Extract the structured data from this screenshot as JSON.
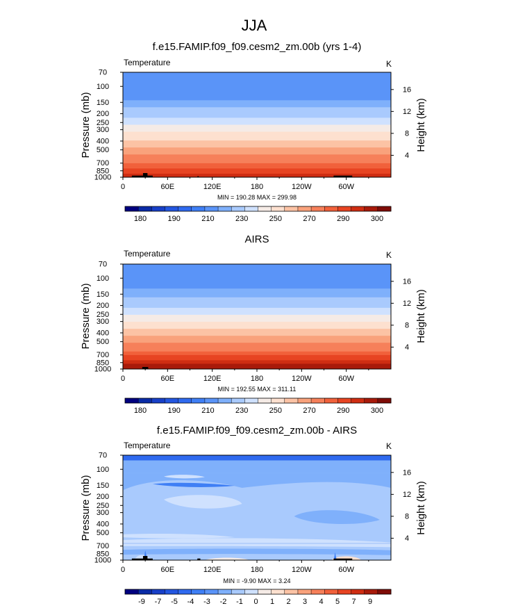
{
  "figure": {
    "title": "JJA",
    "variable": "Temperature",
    "units": "K"
  },
  "chart_data": [
    {
      "type": "contour",
      "title": "f.e15.FAMIP.f09_f09.cesm2_zm.00b (yrs 1-4)",
      "left_label": "Temperature",
      "right_label": "K",
      "ylabel": "Pressure (mb)",
      "ylabel_right": "Height (km)",
      "x_ticks": [
        "0",
        "60E",
        "120E",
        "180",
        "120W",
        "60W"
      ],
      "x_tick_values": [
        0,
        60,
        120,
        180,
        240,
        300
      ],
      "xlim": [
        0,
        360
      ],
      "y_ticks": [
        "70",
        "100",
        "150",
        "200",
        "250",
        "300",
        "400",
        "500",
        "700",
        "850",
        "1000"
      ],
      "y_tick_values": [
        70,
        100,
        150,
        200,
        250,
        300,
        400,
        500,
        700,
        850,
        1000
      ],
      "ylim": [
        70,
        1000
      ],
      "height_ticks": [
        "4",
        "8",
        "12",
        "16"
      ],
      "height_tick_values": [
        4,
        8,
        12,
        16
      ],
      "stats": "MIN = 190.28  MAX = 299.98",
      "min": 190.28,
      "max": 299.98,
      "profile_pressure": [
        70,
        100,
        150,
        200,
        250,
        300,
        400,
        500,
        700,
        850,
        1000
      ],
      "profile_temperature": [
        200,
        200,
        206,
        216,
        226,
        236,
        252,
        264,
        280,
        288,
        294
      ],
      "colorbar": {
        "labels": [
          "180",
          "190",
          "210",
          "230",
          "250",
          "270",
          "290",
          "300"
        ],
        "colors": [
          "#00007f",
          "#0a2ba6",
          "#1840c8",
          "#2356e0",
          "#2f6aef",
          "#3f7ff5",
          "#5a94f8",
          "#7fb0fb",
          "#a9cafd",
          "#cfe1fe",
          "#f5ebe6",
          "#fde0cf",
          "#fcc3a5",
          "#f9a27c",
          "#f6805a",
          "#f1613b",
          "#e74422",
          "#cf2d12",
          "#a81a0a",
          "#7f0c07"
        ]
      }
    },
    {
      "type": "contour",
      "title": "AIRS",
      "left_label": "Temperature",
      "right_label": "K",
      "ylabel": "Pressure (mb)",
      "ylabel_right": "Height (km)",
      "x_ticks": [
        "0",
        "60E",
        "120E",
        "180",
        "120W",
        "60W"
      ],
      "x_tick_values": [
        0,
        60,
        120,
        180,
        240,
        300
      ],
      "xlim": [
        0,
        360
      ],
      "y_ticks": [
        "70",
        "100",
        "150",
        "200",
        "250",
        "300",
        "400",
        "500",
        "700",
        "850",
        "1000"
      ],
      "y_tick_values": [
        70,
        100,
        150,
        200,
        250,
        300,
        400,
        500,
        700,
        850,
        1000
      ],
      "ylim": [
        70,
        1000
      ],
      "height_ticks": [
        "4",
        "8",
        "12",
        "16"
      ],
      "height_tick_values": [
        4,
        8,
        12,
        16
      ],
      "stats": "MIN = 192.55  MAX = 311.11",
      "min": 192.55,
      "max": 311.11,
      "profile_pressure": [
        70,
        100,
        150,
        200,
        250,
        300,
        400,
        500,
        700,
        850,
        1000
      ],
      "profile_temperature": [
        201,
        201,
        207,
        217,
        228,
        240,
        256,
        268,
        284,
        293,
        300
      ],
      "colorbar": {
        "labels": [
          "180",
          "190",
          "210",
          "230",
          "250",
          "270",
          "290",
          "300"
        ],
        "colors": [
          "#00007f",
          "#0a2ba6",
          "#1840c8",
          "#2356e0",
          "#2f6aef",
          "#3f7ff5",
          "#5a94f8",
          "#7fb0fb",
          "#a9cafd",
          "#cfe1fe",
          "#f5ebe6",
          "#fde0cf",
          "#fcc3a5",
          "#f9a27c",
          "#f6805a",
          "#f1613b",
          "#e74422",
          "#cf2d12",
          "#a81a0a",
          "#7f0c07"
        ]
      }
    },
    {
      "type": "contour",
      "title": "f.e15.FAMIP.f09_f09.cesm2_zm.00b - AIRS",
      "left_label": "Temperature",
      "right_label": "K",
      "ylabel": "Pressure (mb)",
      "ylabel_right": "Height (km)",
      "x_ticks": [
        "0",
        "60E",
        "120E",
        "180",
        "120W",
        "60W"
      ],
      "x_tick_values": [
        0,
        60,
        120,
        180,
        240,
        300
      ],
      "xlim": [
        0,
        360
      ],
      "y_ticks": [
        "70",
        "100",
        "150",
        "200",
        "250",
        "300",
        "400",
        "500",
        "700",
        "850",
        "1000"
      ],
      "y_tick_values": [
        70,
        100,
        150,
        200,
        250,
        300,
        400,
        500,
        700,
        850,
        1000
      ],
      "ylim": [
        70,
        1000
      ],
      "height_ticks": [
        "4",
        "8",
        "12",
        "16"
      ],
      "height_tick_values": [
        4,
        8,
        12,
        16
      ],
      "stats": "MIN = -9.90  MAX =  3.24",
      "min": -9.9,
      "max": 3.24,
      "colorbar": {
        "labels": [
          "-9",
          "-7",
          "-5",
          "-4",
          "-3",
          "-2",
          "-1",
          "0",
          "1",
          "2",
          "3",
          "4",
          "5",
          "7",
          "9"
        ],
        "colors": [
          "#00007f",
          "#0a2ba6",
          "#1840c8",
          "#2356e0",
          "#2f6aef",
          "#3f7ff5",
          "#5a94f8",
          "#7fb0fb",
          "#a9cafd",
          "#cfe1fe",
          "#f5ebe6",
          "#fde0cf",
          "#fcc3a5",
          "#f9a27c",
          "#f6805a",
          "#f1613b",
          "#e74422",
          "#cf2d12",
          "#a81a0a",
          "#7f0c07"
        ]
      }
    }
  ]
}
